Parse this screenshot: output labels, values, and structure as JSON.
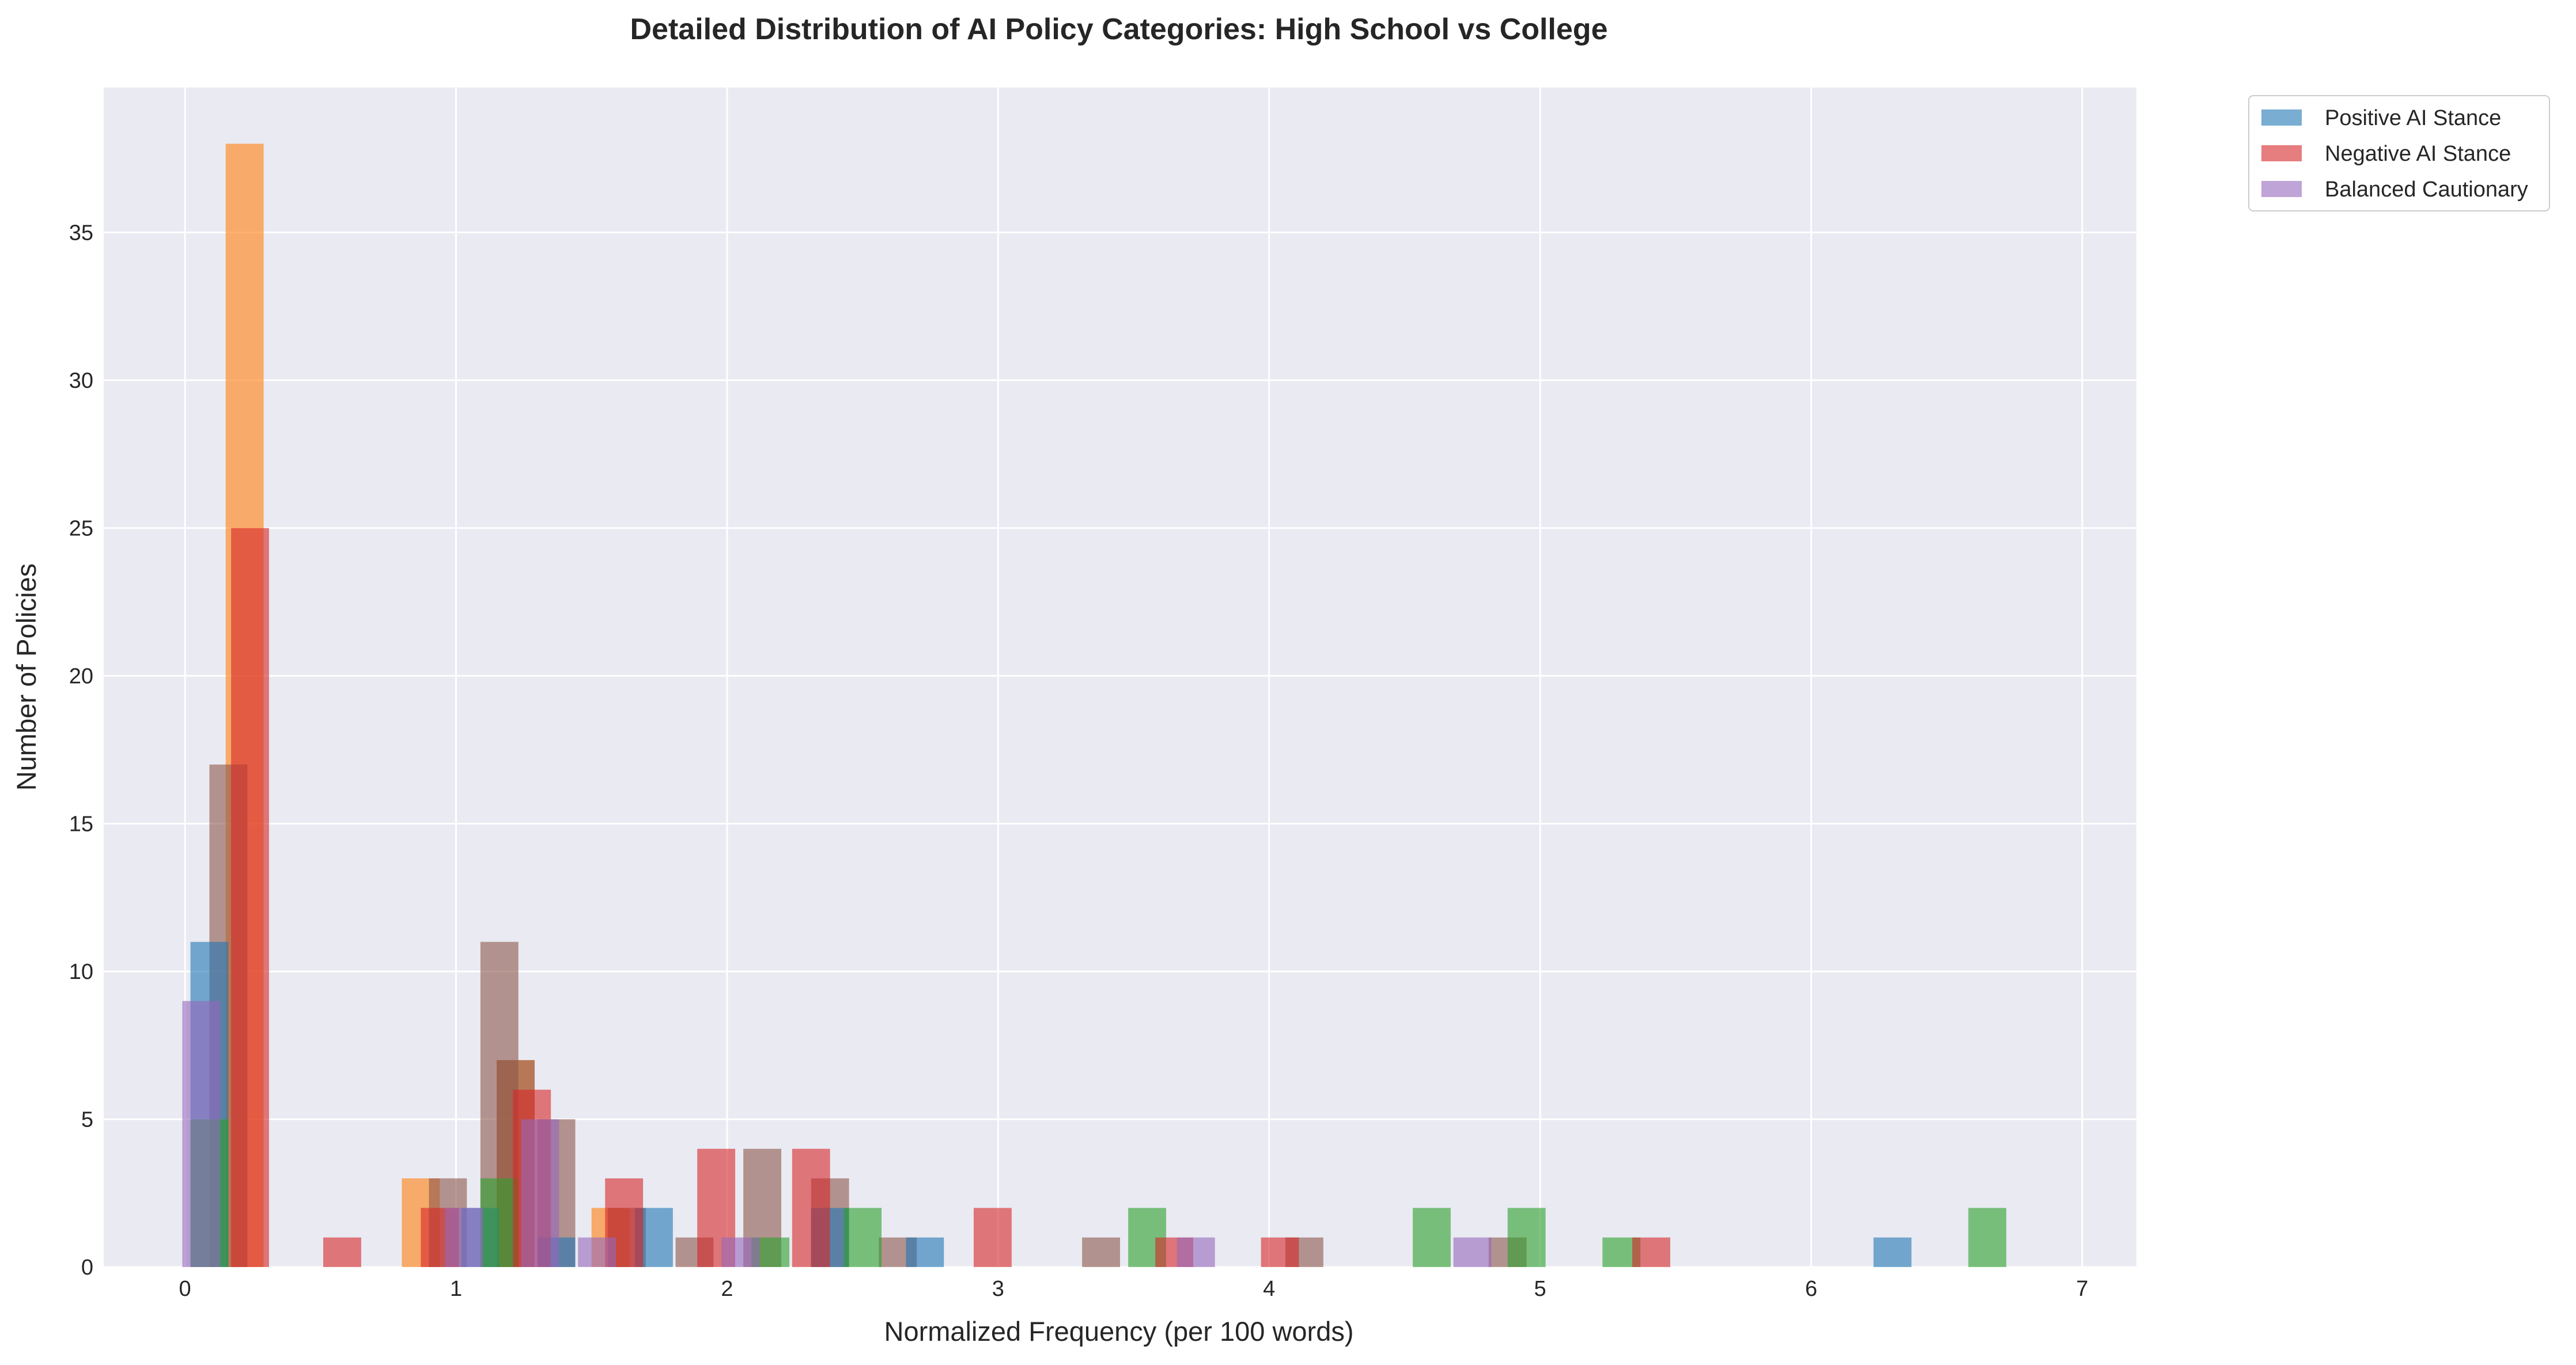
{
  "chart_data": {
    "type": "bar",
    "title": "Detailed Distribution of AI Policy Categories: High School vs College",
    "xlabel": "Normalized Frequency (per 100 words)",
    "ylabel": "Number of Policies",
    "xlim": [
      -0.3,
      7.2
    ],
    "ylim": [
      0,
      39.9
    ],
    "xticks": [
      "0",
      "1",
      "2",
      "3",
      "4",
      "5",
      "6",
      "7"
    ],
    "yticks": [
      "0",
      "5",
      "10",
      "15",
      "20",
      "25",
      "30",
      "35"
    ],
    "grid": true,
    "legend_position": "upper right, outside plot",
    "background_color": "#eaeaf2",
    "bar_width": 0.14,
    "bar_opacity": 0.6,
    "legend": [
      "Positive AI Stance",
      "Negative AI Stance",
      "Balanced Cautionary"
    ],
    "series": [
      {
        "color": "#ff7f0e",
        "bars": [
          [
            0.22,
            38
          ],
          [
            0.87,
            3
          ],
          [
            1.22,
            7
          ],
          [
            1.57,
            2
          ]
        ]
      },
      {
        "color": "#8c564b",
        "bars": [
          [
            0.16,
            17
          ],
          [
            0.97,
            3
          ],
          [
            1.16,
            11
          ],
          [
            1.22,
            7
          ],
          [
            1.37,
            5
          ],
          [
            1.63,
            2
          ],
          [
            1.88,
            1
          ],
          [
            2.13,
            4
          ],
          [
            2.38,
            3
          ],
          [
            2.63,
            1
          ],
          [
            3.38,
            1
          ],
          [
            4.13,
            1
          ],
          [
            4.88,
            1
          ]
        ]
      },
      {
        "name": "Positive AI Stance",
        "color": "#1f77b4",
        "bars": [
          [
            0.09,
            11
          ],
          [
            1.09,
            2
          ],
          [
            1.37,
            1
          ],
          [
            1.73,
            2
          ],
          [
            2.38,
            2
          ],
          [
            2.73,
            1
          ],
          [
            6.3,
            1
          ]
        ]
      },
      {
        "color": "#2ca02c",
        "bars": [
          [
            0.09,
            5
          ],
          [
            1.16,
            3
          ],
          [
            2.16,
            1
          ],
          [
            2.5,
            2
          ],
          [
            3.55,
            2
          ],
          [
            4.6,
            2
          ],
          [
            4.95,
            2
          ],
          [
            5.3,
            1
          ],
          [
            6.65,
            2
          ]
        ]
      },
      {
        "name": "Negative AI Stance",
        "color": "#d62728",
        "bars": [
          [
            0.24,
            25
          ],
          [
            0.58,
            1
          ],
          [
            0.94,
            2
          ],
          [
            1.28,
            6
          ],
          [
            1.62,
            3
          ],
          [
            1.96,
            4
          ],
          [
            2.31,
            4
          ],
          [
            2.98,
            2
          ],
          [
            3.65,
            1
          ],
          [
            4.04,
            1
          ],
          [
            5.41,
            1
          ]
        ]
      },
      {
        "name": "Balanced Cautionary",
        "color": "#9467bd",
        "bars": [
          [
            0.06,
            9
          ],
          [
            1.03,
            2
          ],
          [
            1.31,
            5
          ],
          [
            1.52,
            1
          ],
          [
            2.05,
            1
          ],
          [
            3.73,
            1
          ],
          [
            4.75,
            1
          ]
        ]
      }
    ]
  }
}
